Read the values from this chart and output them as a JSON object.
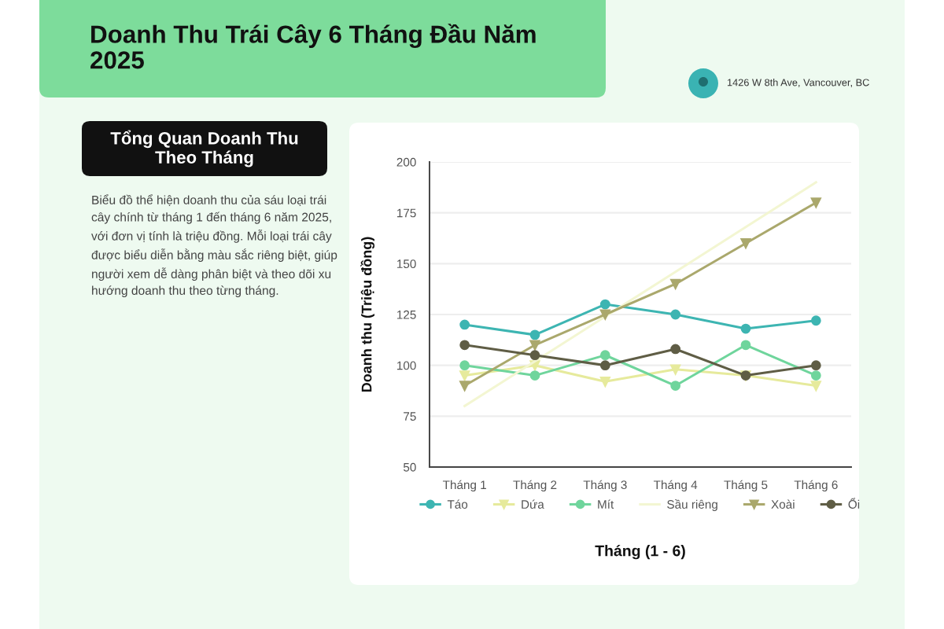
{
  "chart_data": {
    "type": "line",
    "title": "Doanh Thu Trái Cây 6 Tháng Đầu Năm 2025",
    "xlabel": "Tháng (1 - 6)",
    "ylabel": "Doanh thu (Triệu đồng)",
    "categories": [
      "Tháng 1",
      "Tháng 2",
      "Tháng 3",
      "Tháng 4",
      "Tháng 5",
      "Tháng 6"
    ],
    "series": [
      {
        "name": "Táo",
        "color": "#3db5b2",
        "marker": "circle",
        "values": [
          120,
          115,
          130,
          125,
          118,
          122
        ]
      },
      {
        "name": "Dứa",
        "color": "#e6ea9c",
        "marker": "triangle",
        "values": [
          95,
          100,
          92,
          98,
          95,
          90
        ]
      },
      {
        "name": "Mít",
        "color": "#6fd59c",
        "marker": "circle",
        "values": [
          100,
          95,
          105,
          90,
          110,
          95
        ]
      },
      {
        "name": "Sầu riêng",
        "color": "#f3f6d2",
        "marker": "none",
        "values": [
          80,
          102,
          124,
          146,
          168,
          190
        ]
      },
      {
        "name": "Xoài",
        "color": "#aaa86c",
        "marker": "triangle",
        "values": [
          90,
          110,
          125,
          140,
          160,
          180
        ]
      },
      {
        "name": "Ổi",
        "color": "#5f5d45",
        "marker": "circle",
        "values": [
          110,
          105,
          100,
          108,
          95,
          100
        ]
      }
    ],
    "ylim": [
      50,
      200
    ],
    "yticks": [
      50,
      75,
      100,
      125,
      150,
      175,
      200
    ],
    "grid": "y",
    "legend": "bottom",
    "annotations": [
      "Tổng Quan Doanh Thu Theo Tháng",
      "Biểu đồ thể hiện doanh thu của sáu loại trái cây chính từ tháng 1 đến tháng 6 năm 2025, với đơn vị tính là triệu đồng. Mỗi loại trái cây được biểu diễn bằng màu sắc riêng biệt, giúp người xem dễ dàng phân biệt và theo dõi xu hướng doanh thu theo từng tháng.",
      "1426 W 8th Ave, Vancouver, BC"
    ]
  }
}
